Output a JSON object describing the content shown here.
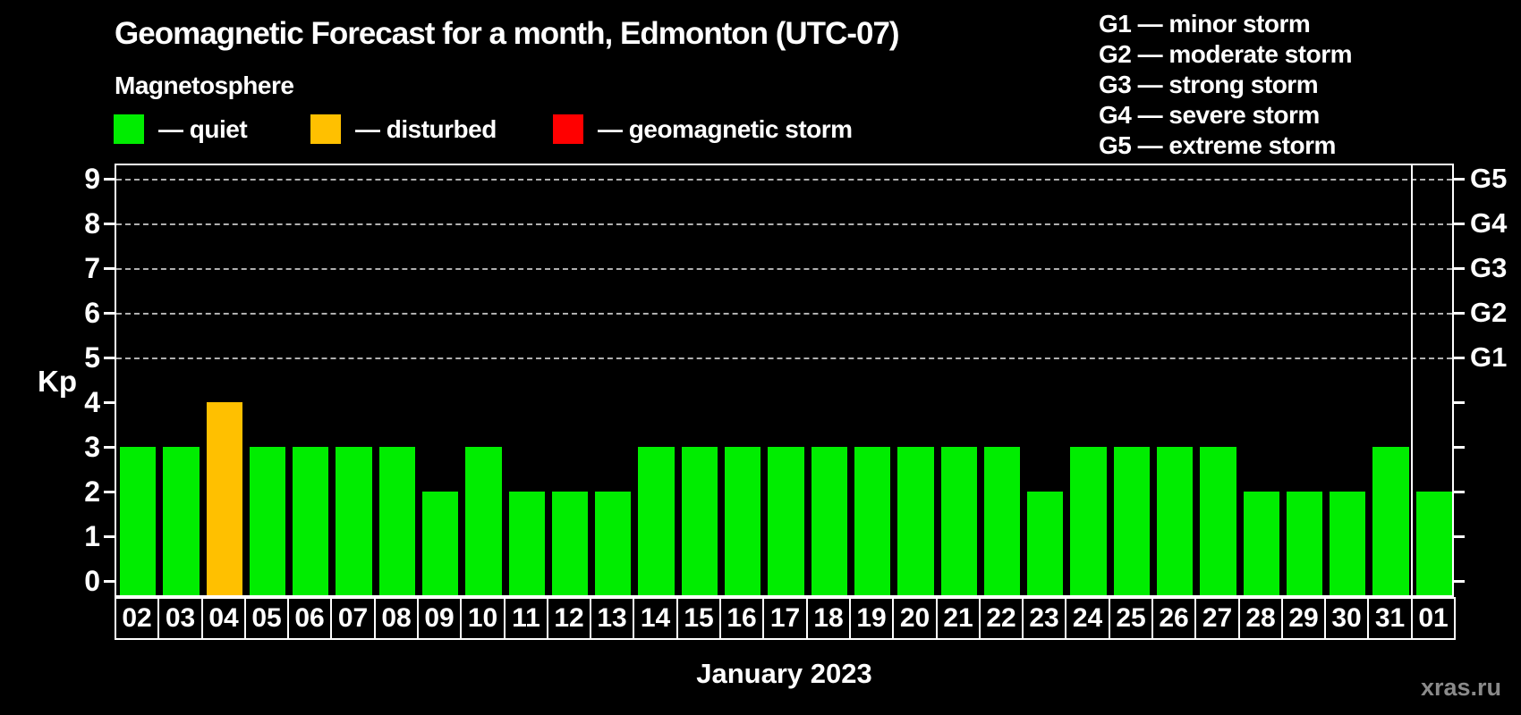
{
  "header": {
    "title": "Geomagnetic Forecast for a month, Edmonton (UTC-07)",
    "subtitle": "Magnetosphere"
  },
  "legend": {
    "items": [
      {
        "key": "quiet",
        "label": "— quiet",
        "color": "#00ed00"
      },
      {
        "key": "disturbed",
        "label": "— disturbed",
        "color": "#ffc000"
      },
      {
        "key": "storm",
        "label": "— geomagnetic storm",
        "color": "#ff0000"
      }
    ]
  },
  "g_legend": {
    "lines": [
      "G1 — minor storm",
      "G2 — moderate storm",
      "G3 — strong storm",
      "G4 — severe storm",
      "G5 — extreme storm"
    ]
  },
  "chart_data": {
    "type": "bar",
    "title": "Geomagnetic Forecast for a month, Edmonton (UTC-07)",
    "categories": [
      "02",
      "03",
      "04",
      "05",
      "06",
      "07",
      "08",
      "09",
      "10",
      "11",
      "12",
      "13",
      "14",
      "15",
      "16",
      "17",
      "18",
      "19",
      "20",
      "21",
      "22",
      "23",
      "24",
      "25",
      "26",
      "27",
      "28",
      "29",
      "30",
      "31",
      "01"
    ],
    "values": [
      3,
      3,
      4,
      3,
      3,
      3,
      3,
      2,
      3,
      2,
      2,
      2,
      3,
      3,
      3,
      3,
      3,
      3,
      3,
      3,
      3,
      2,
      3,
      3,
      3,
      3,
      2,
      2,
      2,
      3,
      2
    ],
    "statuses": [
      "quiet",
      "quiet",
      "disturbed",
      "quiet",
      "quiet",
      "quiet",
      "quiet",
      "quiet",
      "quiet",
      "quiet",
      "quiet",
      "quiet",
      "quiet",
      "quiet",
      "quiet",
      "quiet",
      "quiet",
      "quiet",
      "quiet",
      "quiet",
      "quiet",
      "quiet",
      "quiet",
      "quiet",
      "quiet",
      "quiet",
      "quiet",
      "quiet",
      "quiet",
      "quiet",
      "quiet"
    ],
    "colors": {
      "quiet": "#00ed00",
      "disturbed": "#ffc000",
      "storm": "#ff0000"
    },
    "ylabel": "Kp",
    "xlabel": "January 2023",
    "ylim": [
      0,
      9
    ],
    "yticks": [
      0,
      1,
      2,
      3,
      4,
      5,
      6,
      7,
      8,
      9
    ],
    "grid_levels": [
      {
        "kp": 5,
        "label": "G1"
      },
      {
        "kp": 6,
        "label": "G2"
      },
      {
        "kp": 7,
        "label": "G3"
      },
      {
        "kp": 8,
        "label": "G4"
      },
      {
        "kp": 9,
        "label": "G5"
      }
    ],
    "month_boundary_after_category": "31",
    "grid": "dashed-horizontal",
    "legend_position": "top-left"
  },
  "watermark": {
    "label": "xras.ru",
    "color": "#8a8a8a"
  }
}
